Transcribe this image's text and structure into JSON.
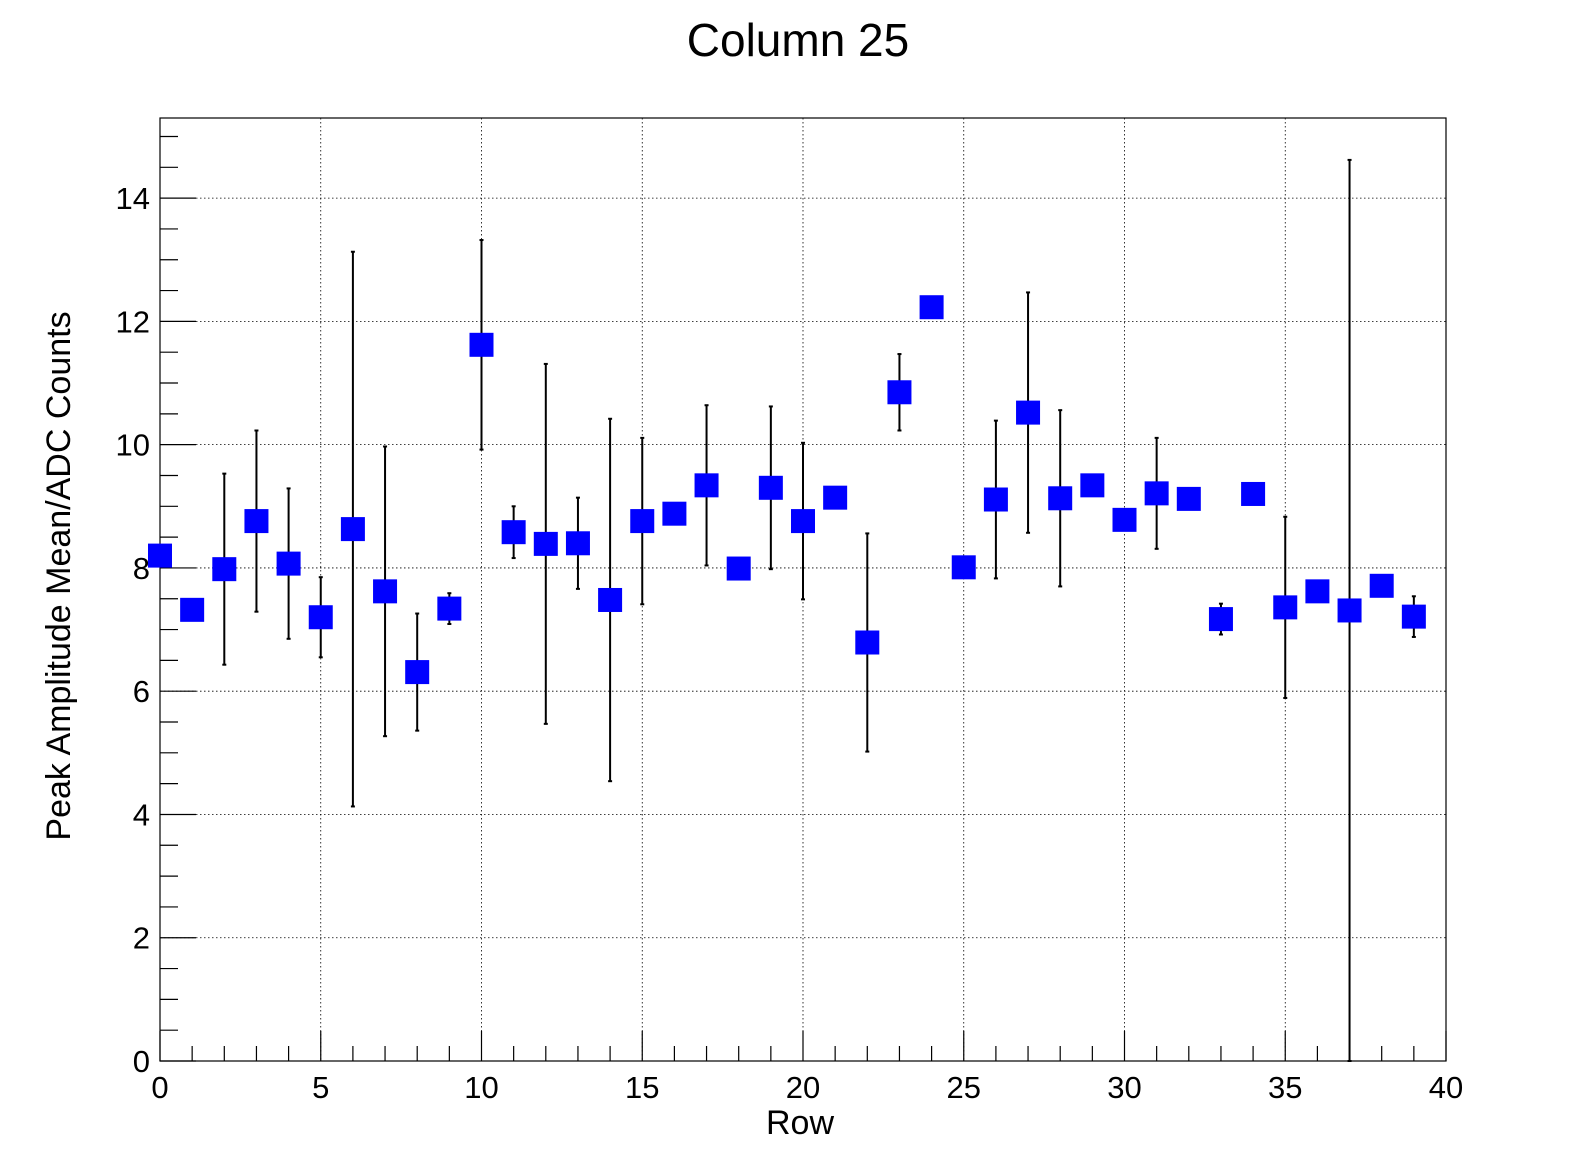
{
  "chart_data": {
    "type": "scatter",
    "title": "Column 25",
    "xlabel": "Row",
    "ylabel": "Peak Amplitude Mean/ADC Counts",
    "xlim": [
      0,
      40
    ],
    "ylim": [
      0,
      15.3
    ],
    "grid": true,
    "marker": "square",
    "marker_color": "#0000ff",
    "x_ticks": [
      0,
      5,
      10,
      15,
      20,
      25,
      30,
      35,
      40
    ],
    "y_ticks": [
      0,
      2,
      4,
      6,
      8,
      10,
      12,
      14
    ],
    "x_tick_labels": [
      "0",
      "5",
      "10",
      "15",
      "20",
      "25",
      "30",
      "35",
      "40"
    ],
    "y_tick_labels": [
      "0",
      "2",
      "4",
      "6",
      "8",
      "10",
      "12",
      "14"
    ],
    "series": [
      {
        "points": [
          {
            "x": 0,
            "y": 8.2,
            "err": 0
          },
          {
            "x": 1,
            "y": 7.32,
            "err": 0
          },
          {
            "x": 2,
            "y": 7.98,
            "err": 1.55
          },
          {
            "x": 3,
            "y": 8.76,
            "err": 1.47
          },
          {
            "x": 4,
            "y": 8.07,
            "err": 1.22
          },
          {
            "x": 5,
            "y": 7.2,
            "err": 0.65
          },
          {
            "x": 6,
            "y": 8.63,
            "err": 4.5
          },
          {
            "x": 7,
            "y": 7.62,
            "err": 2.35
          },
          {
            "x": 8,
            "y": 6.31,
            "err": 0.95
          },
          {
            "x": 9,
            "y": 7.34,
            "err": 0.25
          },
          {
            "x": 10,
            "y": 11.62,
            "err": 1.7
          },
          {
            "x": 11,
            "y": 8.58,
            "err": 0.42
          },
          {
            "x": 12,
            "y": 8.39,
            "err": 2.92
          },
          {
            "x": 13,
            "y": 8.4,
            "err": 0.74
          },
          {
            "x": 14,
            "y": 7.48,
            "err": 2.94
          },
          {
            "x": 15,
            "y": 8.76,
            "err": 1.35
          },
          {
            "x": 16,
            "y": 8.88,
            "err": 0
          },
          {
            "x": 17,
            "y": 9.34,
            "err": 1.3
          },
          {
            "x": 18,
            "y": 7.99,
            "err": 0
          },
          {
            "x": 19,
            "y": 9.3,
            "err": 1.32
          },
          {
            "x": 20,
            "y": 8.76,
            "err": 1.27
          },
          {
            "x": 21,
            "y": 9.14,
            "err": 0
          },
          {
            "x": 22,
            "y": 6.79,
            "err": 1.77
          },
          {
            "x": 23,
            "y": 10.85,
            "err": 0.62
          },
          {
            "x": 24,
            "y": 12.23,
            "err": 0
          },
          {
            "x": 25,
            "y": 8.01,
            "err": 0
          },
          {
            "x": 26,
            "y": 9.11,
            "err": 1.28
          },
          {
            "x": 27,
            "y": 10.52,
            "err": 1.95
          },
          {
            "x": 28,
            "y": 9.13,
            "err": 1.43
          },
          {
            "x": 29,
            "y": 9.34,
            "err": 0
          },
          {
            "x": 30,
            "y": 8.78,
            "err": 0
          },
          {
            "x": 31,
            "y": 9.21,
            "err": 0.9
          },
          {
            "x": 32,
            "y": 9.12,
            "err": 0
          },
          {
            "x": 33,
            "y": 7.17,
            "err": 0.25
          },
          {
            "x": 34,
            "y": 9.2,
            "err": 0
          },
          {
            "x": 35,
            "y": 7.36,
            "err": 1.47
          },
          {
            "x": 36,
            "y": 7.62,
            "err": 0
          },
          {
            "x": 37,
            "y": 7.31,
            "err": 7.31
          },
          {
            "x": 38,
            "y": 7.71,
            "err": 0
          },
          {
            "x": 39,
            "y": 7.21,
            "err": 0.33
          }
        ]
      }
    ]
  }
}
